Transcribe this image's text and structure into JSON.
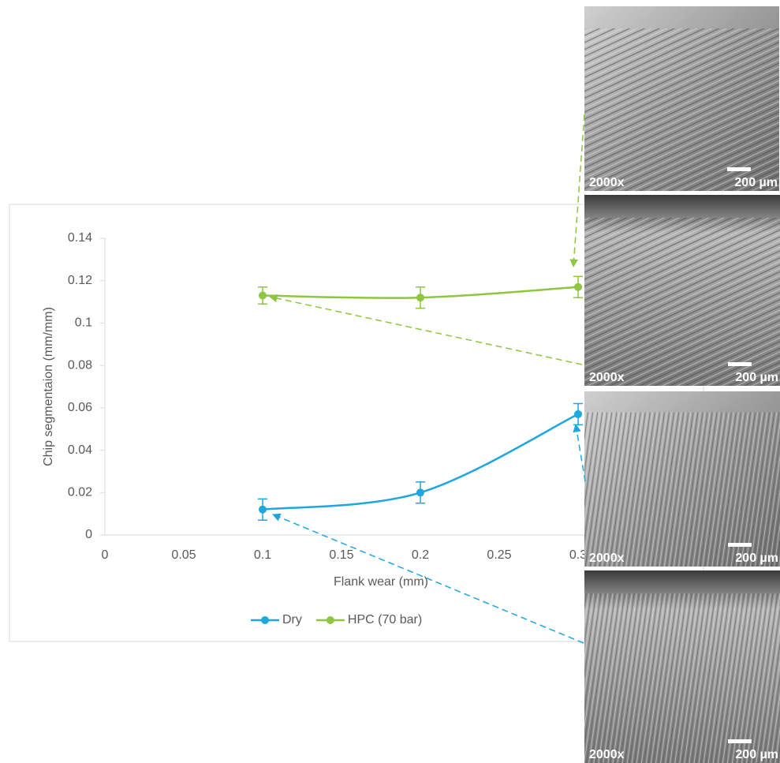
{
  "chart_data": {
    "type": "line",
    "y_label": "Chip segmentaion (mm/mm)",
    "x_label": "Flank wear (mm)",
    "x": [
      0.1,
      0.2,
      0.3
    ],
    "series": [
      {
        "name": "Dry",
        "color": "#1ea6de",
        "values": [
          0.012,
          0.02,
          0.057
        ],
        "errors": [
          0.005,
          0.005,
          0.005
        ]
      },
      {
        "name": "HPC (70 bar)",
        "color": "#8dc63f",
        "values": [
          0.113,
          0.112,
          0.117
        ],
        "errors": [
          0.004,
          0.005,
          0.005
        ]
      }
    ],
    "xlim": [
      0,
      0.35
    ],
    "xticks": [
      0,
      0.05,
      0.1,
      0.15,
      0.2,
      0.25,
      0.3
    ],
    "ylim": [
      0,
      0.14
    ],
    "yticks": [
      0,
      0.02,
      0.04,
      0.06,
      0.08,
      0.1,
      0.12,
      0.14
    ],
    "grid": false,
    "legend": "bottom",
    "images": [
      {
        "magnification": "2000x",
        "scale": "200 µm"
      },
      {
        "magnification": "2000x",
        "scale": "200 µm"
      },
      {
        "magnification": "2000x",
        "scale": "200 µm"
      },
      {
        "magnification": "2000x",
        "scale": "200 µm"
      }
    ]
  }
}
